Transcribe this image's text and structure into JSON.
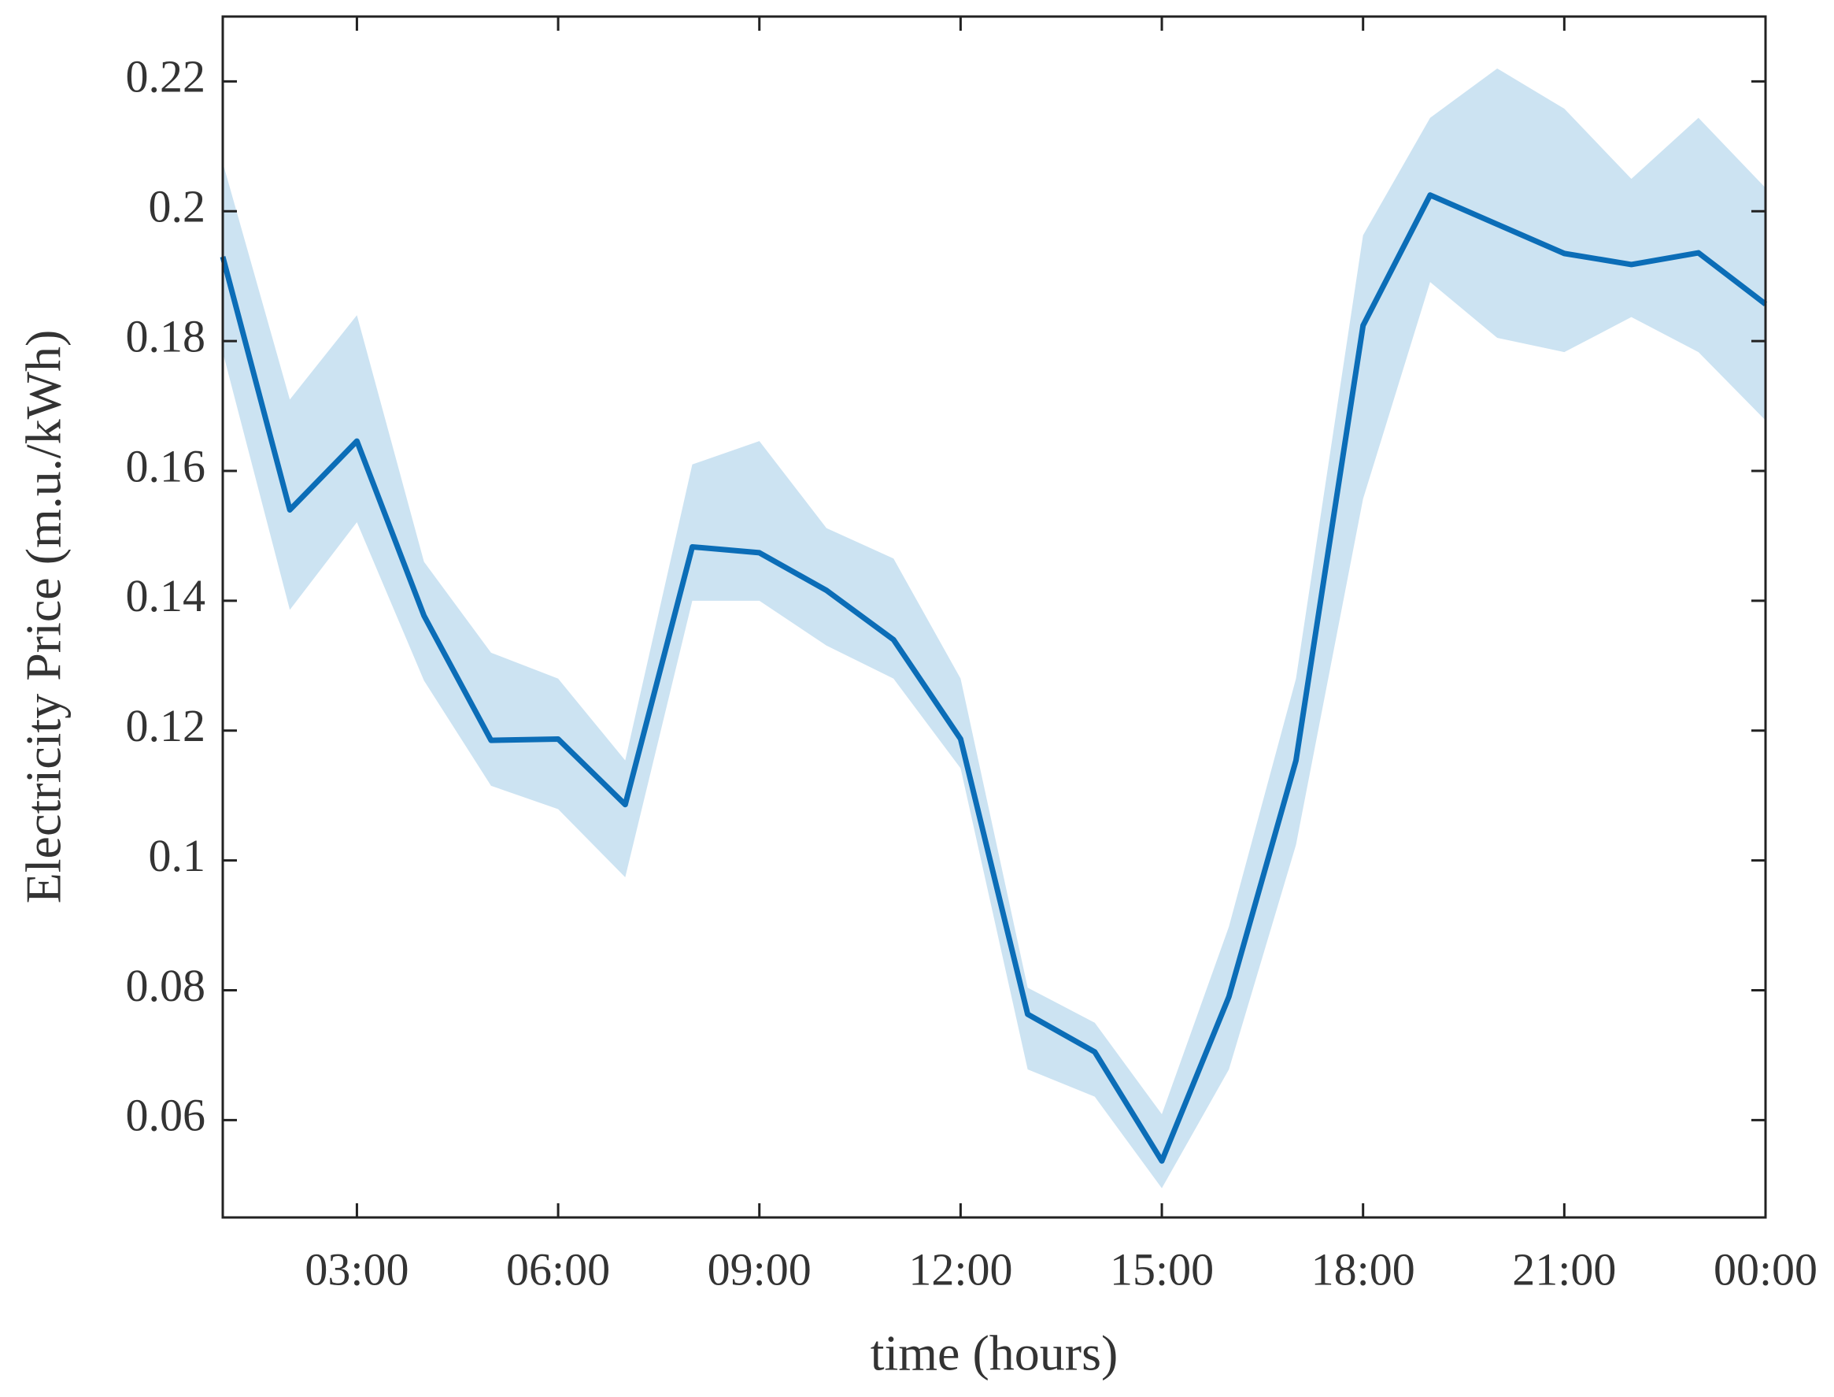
{
  "chart_data": {
    "type": "line",
    "xlabel": "time (hours)",
    "ylabel": "Electricity Price (m.u./kWh)",
    "x": [
      1,
      2,
      3,
      4,
      5,
      6,
      7,
      8,
      9,
      10,
      11,
      12,
      13,
      14,
      15,
      16,
      17,
      18,
      19,
      20,
      21,
      22,
      23,
      24
    ],
    "values": [
      0.193,
      0.154,
      0.1646,
      0.1377,
      0.1185,
      0.1187,
      0.1086,
      0.1483,
      0.1474,
      0.1416,
      0.134,
      0.1187,
      0.0763,
      0.0705,
      0.0537,
      0.079,
      0.1154,
      0.1824,
      0.2025,
      0.198,
      0.1935,
      0.1918,
      0.1936,
      0.1857
    ],
    "upper": [
      0.2075,
      0.171,
      0.184,
      0.146,
      0.132,
      0.128,
      0.1154,
      0.161,
      0.1646,
      0.1512,
      0.1465,
      0.128,
      0.0804,
      0.075,
      0.0609,
      0.0898,
      0.128,
      0.1963,
      0.2144,
      0.222,
      0.2158,
      0.205,
      0.2144,
      0.2036
    ],
    "lower": [
      0.1783,
      0.1386,
      0.1521,
      0.1277,
      0.1115,
      0.1079,
      0.0974,
      0.14,
      0.14,
      0.1331,
      0.128,
      0.1142,
      0.0678,
      0.0636,
      0.0495,
      0.0678,
      0.1024,
      0.1557,
      0.1891,
      0.1805,
      0.1783,
      0.1837,
      0.1783,
      0.1678
    ],
    "color": "#0b6db7",
    "band_color": "#cce3f2",
    "xlim": [
      1,
      24
    ],
    "ylim": [
      0.045,
      0.23
    ],
    "xticks": [
      {
        "value": 3,
        "label": "03:00"
      },
      {
        "value": 6,
        "label": "06:00"
      },
      {
        "value": 9,
        "label": "09:00"
      },
      {
        "value": 12,
        "label": "12:00"
      },
      {
        "value": 15,
        "label": "15:00"
      },
      {
        "value": 18,
        "label": "18:00"
      },
      {
        "value": 21,
        "label": "21:00"
      },
      {
        "value": 24,
        "label": "00:00"
      }
    ],
    "yticks": [
      0.06,
      0.08,
      0.1,
      0.12,
      0.14,
      0.16,
      0.18,
      0.2,
      0.22
    ]
  }
}
